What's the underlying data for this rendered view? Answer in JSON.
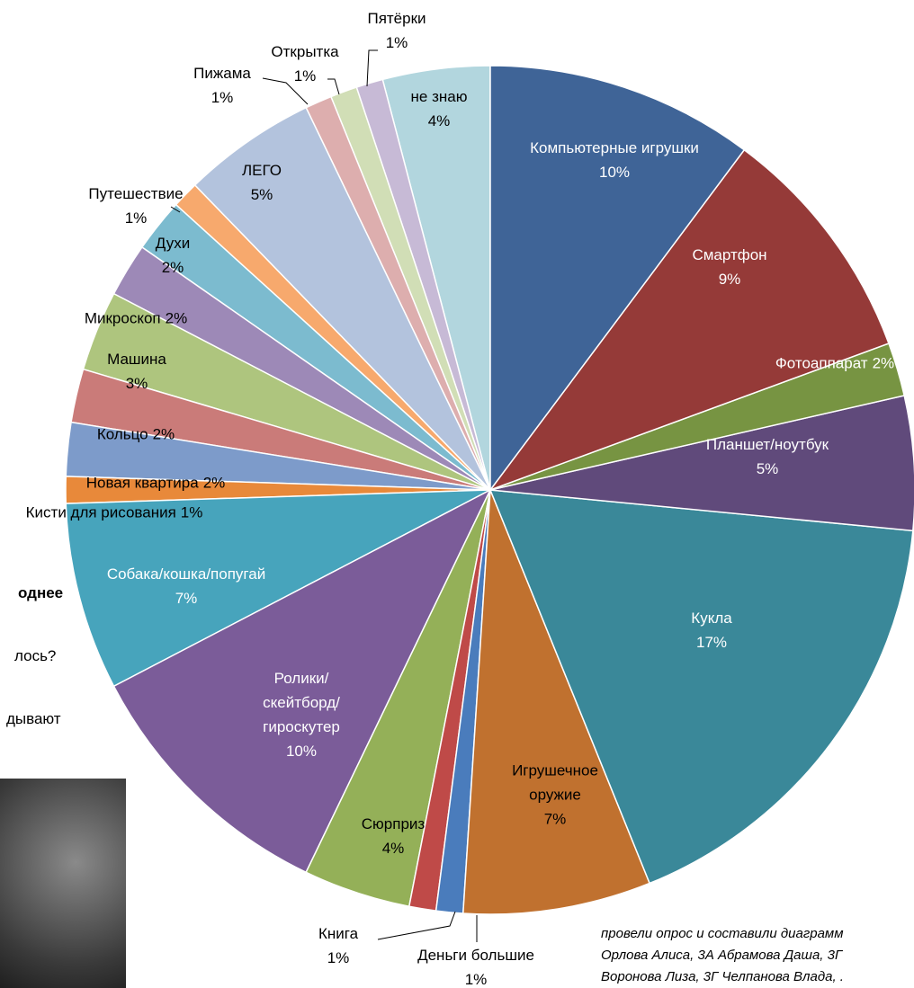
{
  "chart_data": {
    "type": "pie",
    "categories": [
      "Компьютерные игрушки",
      "Смартфон",
      "Фотоаппарат",
      "Планшет/ноутбук",
      "Кукла",
      "Игрушечное\nоружие",
      "Деньги большие",
      "Книга",
      "Сюрприз",
      "Ролики/\nскейтборд/\nгироскутер",
      "Собака/кошка/попугай",
      "Кисти для рисования",
      "Новая квартира",
      "Кольцо",
      "Машина",
      "Микроскоп",
      "Духи",
      "Путешествие",
      "ЛЕГО",
      "Пижама",
      "Открытка",
      "Пятёрки",
      "не знаю"
    ],
    "values": [
      10,
      9,
      2,
      5,
      17,
      7,
      1,
      1,
      4,
      10,
      7,
      1,
      2,
      2,
      3,
      2,
      2,
      1,
      5,
      1,
      1,
      1,
      4
    ],
    "value_labels": [
      "10%",
      "9%",
      "2%",
      "5%",
      "17%",
      "7%",
      "1%",
      "1%",
      "4%",
      "10%",
      "7%",
      "1%",
      "2%",
      "2%",
      "3%",
      "2%",
      "2%",
      "1%",
      "5%",
      "1%",
      "1%",
      "1%",
      "4%"
    ],
    "colors": [
      "#3f6497",
      "#953a38",
      "#779442",
      "#604a7b",
      "#3a8899",
      "#c0712f",
      "#4a7cbc",
      "#bf4a48",
      "#94b058",
      "#7b5c99",
      "#47a4bc",
      "#e8893a",
      "#7d9bca",
      "#ca7b79",
      "#aec57e",
      "#9d89b7",
      "#7cbbcf",
      "#f7a96d",
      "#b3c3dd",
      "#ddaeae",
      "#d1deb6",
      "#c7bad6",
      "#b2d6de"
    ]
  },
  "background_text": [
    "однее",
    "лось?",
    "дывают"
  ],
  "credits": [
    "провели опрос и составили диаграмм",
    "Орлова Алиса, 3А  Абрамова Даша, 3Г",
    "Воронова Лиза, 3Г  Челпанова Влада, ."
  ]
}
